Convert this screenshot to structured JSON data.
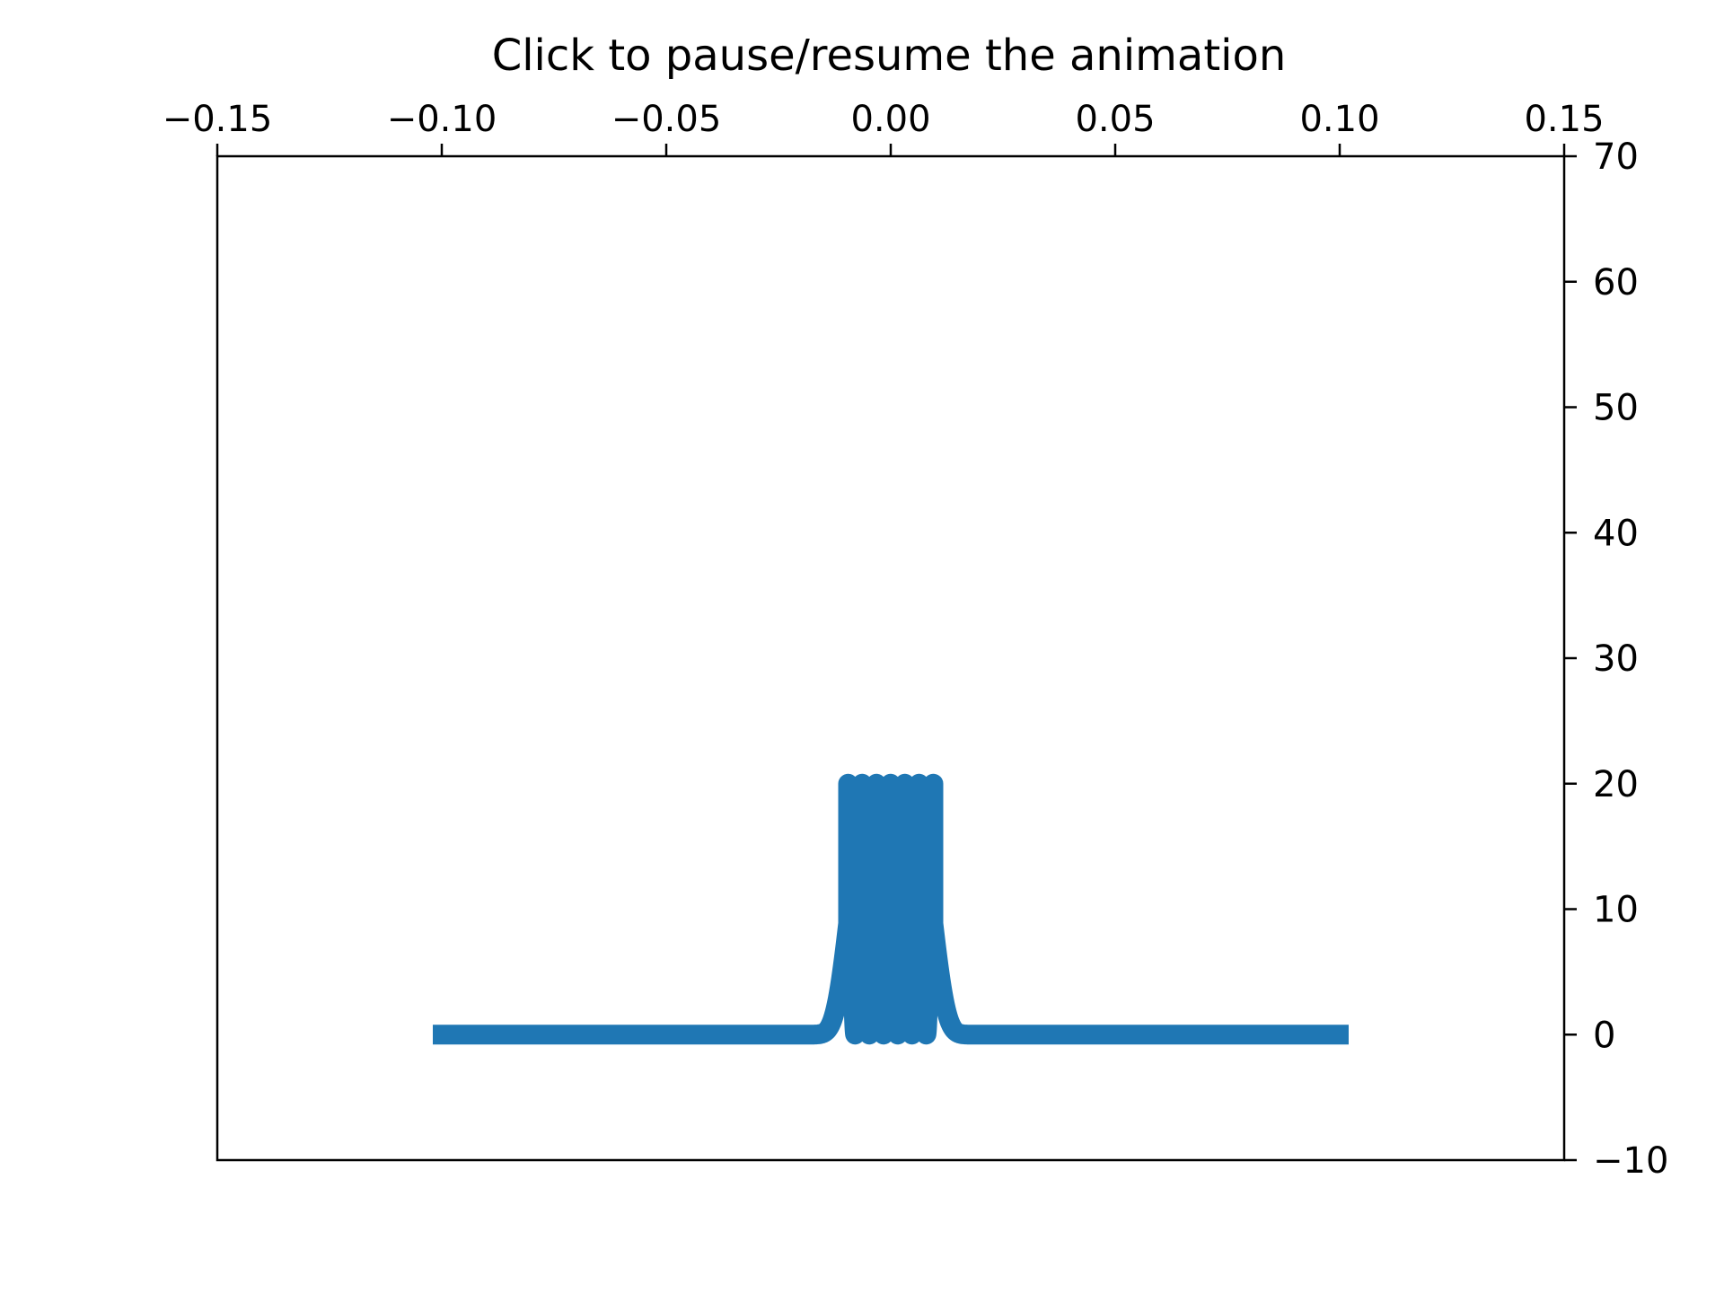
{
  "chart_data": {
    "type": "line",
    "title": "Click to pause/resume the animation",
    "xlabel": "",
    "ylabel": "",
    "xlim": [
      -0.15,
      0.15
    ],
    "ylim": [
      -10,
      70
    ],
    "x_ticks": [
      {
        "value": -0.15,
        "label": "−0.15"
      },
      {
        "value": -0.1,
        "label": "−0.10"
      },
      {
        "value": -0.05,
        "label": "−0.05"
      },
      {
        "value": 0.0,
        "label": "0.00"
      },
      {
        "value": 0.05,
        "label": "0.05"
      },
      {
        "value": 0.1,
        "label": "0.10"
      },
      {
        "value": 0.15,
        "label": "0.15"
      }
    ],
    "y_ticks": [
      {
        "value": 70,
        "label": "70"
      },
      {
        "value": 60,
        "label": "60"
      },
      {
        "value": 50,
        "label": "50"
      },
      {
        "value": 40,
        "label": "40"
      },
      {
        "value": 30,
        "label": "30"
      },
      {
        "value": 20,
        "label": "20"
      },
      {
        "value": 10,
        "label": "10"
      },
      {
        "value": 0,
        "label": "0"
      },
      {
        "value": -10,
        "label": "−10"
      }
    ],
    "x_axis_position": "top",
    "y_axis_position": "right",
    "grid": false,
    "series": [
      {
        "color": "#1f77b4",
        "x_range": [
          -0.102,
          0.102
        ],
        "peak": 20,
        "baseline": 0,
        "envelope_width": 0.01,
        "oscillation_half_width": 0.0095,
        "oscillation_count": 6
      }
    ]
  }
}
